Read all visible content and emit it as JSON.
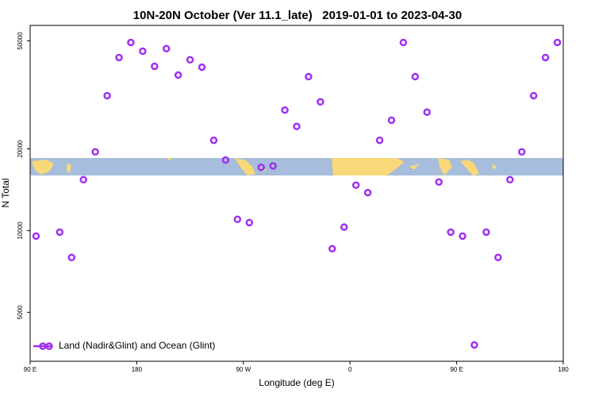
{
  "chart_data": {
    "type": "scatter",
    "title": "10N-20N October (Ver 11.1_late)   2019-01-01 to 2023-04-30",
    "xlabel": "Longitude (deg E)",
    "ylabel": "N Total",
    "xlim": [
      90,
      540
    ],
    "ylim": [
      3300,
      57000
    ],
    "log_y": true,
    "xticks": [
      {
        "value": 90,
        "label": "90 E"
      },
      {
        "value": 180,
        "label": "180"
      },
      {
        "value": 270,
        "label": "90 W"
      },
      {
        "value": 360,
        "label": "0"
      },
      {
        "value": 450,
        "label": "90 E"
      },
      {
        "value": 540,
        "label": "180"
      }
    ],
    "yticks": [
      5000,
      10000,
      20000,
      50000
    ],
    "legend": "lower left",
    "series": [
      {
        "name": "Land (Nadir&Glint) and Ocean (Glint)",
        "color": "#a030f0",
        "x": [
          95,
          115,
          125,
          135,
          145,
          155,
          165,
          175,
          185,
          195,
          205,
          215,
          225,
          235,
          245,
          255,
          265,
          275,
          285,
          295,
          305,
          315,
          325,
          335,
          345,
          355,
          365,
          375,
          385,
          395,
          405,
          415,
          425,
          435,
          445,
          455,
          465,
          475,
          485,
          495,
          505,
          515,
          525,
          535
        ],
        "values": [
          9540,
          9870,
          7960,
          15400,
          19500,
          31400,
          43400,
          49300,
          45800,
          40300,
          46800,
          37400,
          42600,
          40000,
          21500,
          18200,
          11000,
          10700,
          17100,
          17300,
          27800,
          24200,
          36900,
          29800,
          8570,
          10300,
          14700,
          13800,
          21500,
          25500,
          49300,
          36900,
          27300,
          15100,
          9870,
          9540,
          3790,
          9870,
          7960,
          15400,
          19500,
          31400,
          43400,
          49300
        ]
      }
    ]
  }
}
